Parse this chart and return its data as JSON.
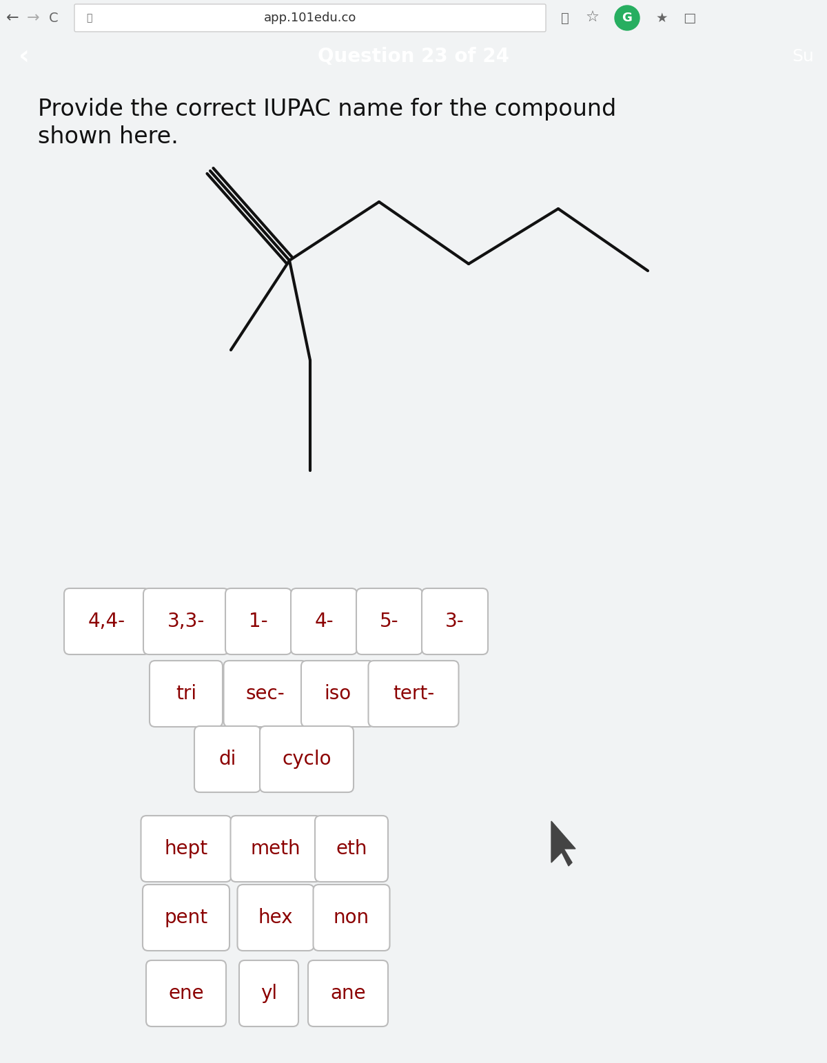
{
  "browser_bar_color": "#f1f3f4",
  "browser_text": "app.101edu.co",
  "header_color": "#c0392b",
  "header_text": "Question 23 of 24",
  "header_text_color": "#ffffff",
  "back_arrow": "‹",
  "sub_button": "Su",
  "bg_top_color": "#d4d4d4",
  "bg_bottom_color": "#cccccc",
  "question_text_line1": "Provide the correct IUPAC name for the compound",
  "question_text_line2": "shown here.",
  "question_text_color": "#111111",
  "molecule_color": "#111111",
  "divider_color": "#aaaaaa",
  "button_bg": "#ffffff",
  "button_border": "#bbbbbb",
  "button_text_color": "#8b0000",
  "button_rows": [
    [
      "4,4-",
      "3,3-",
      "1-",
      "4-",
      "5-",
      "3-"
    ],
    [
      "tri",
      "sec-",
      "iso",
      "tert-"
    ],
    [
      "di",
      "cyclo"
    ],
    [
      "hept",
      "meth",
      "eth"
    ],
    [
      "pent",
      "hex",
      "non"
    ],
    [
      "ene",
      "yl",
      "ane"
    ]
  ]
}
